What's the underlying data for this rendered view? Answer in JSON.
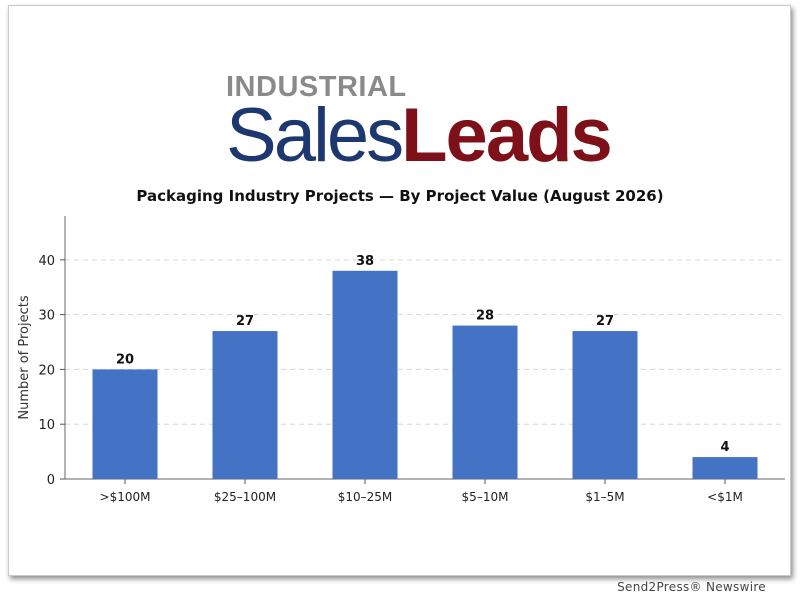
{
  "logo": {
    "line1": "INDUSTRIAL",
    "word1": "Sales",
    "word2": "Leads"
  },
  "chart_data": {
    "type": "bar",
    "title": "Packaging Industry Projects — By Project Value (August 2026)",
    "xlabel": "",
    "ylabel": "Number of Projects",
    "categories": [
      ">$100M",
      "$25–100M",
      "$10–25M",
      "$5–10M",
      "$1–5M",
      "<$1M"
    ],
    "values": [
      20,
      27,
      38,
      28,
      27,
      4
    ],
    "ylim": [
      0,
      48
    ],
    "yticks": [
      0,
      10,
      20,
      30,
      40
    ],
    "grid": true,
    "bar_color": "#4472c4"
  },
  "credit": "Send2Press® Newswire"
}
